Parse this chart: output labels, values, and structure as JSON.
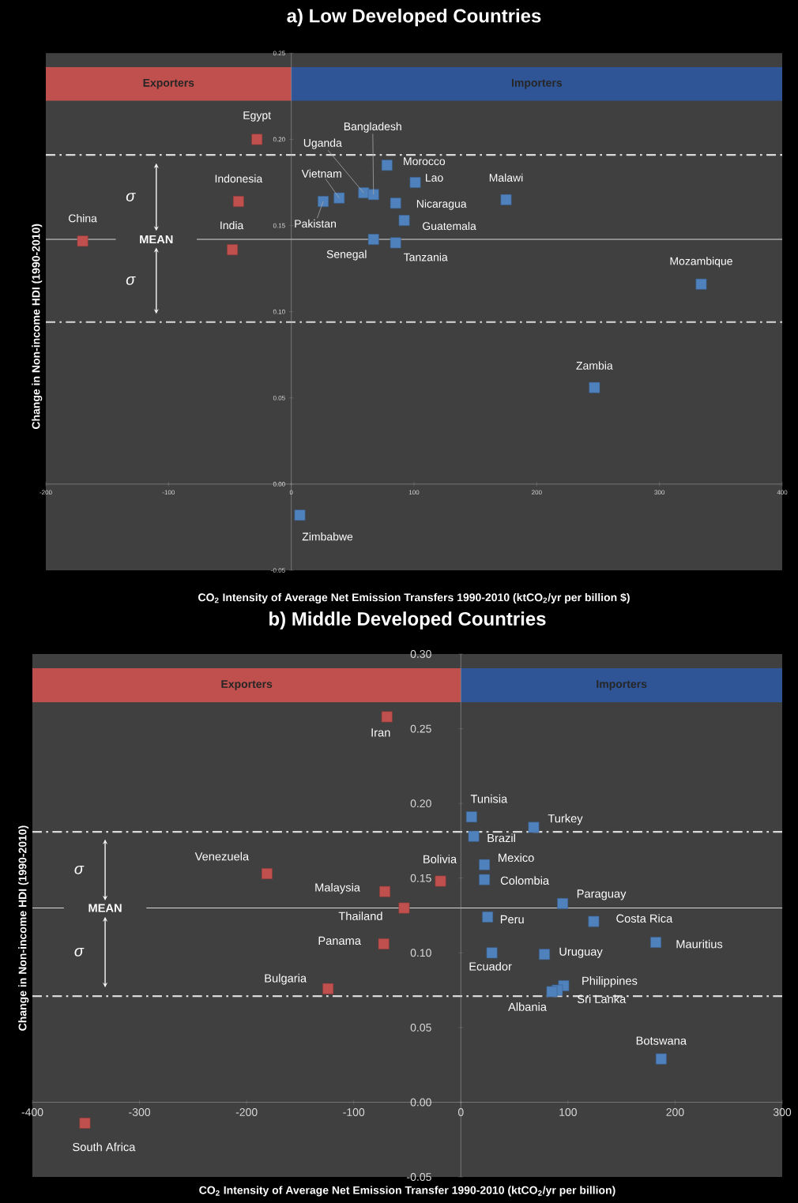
{
  "chart_data": [
    {
      "type": "scatter",
      "title": "a) Low Developed Countries",
      "xlabel": "CO$_{2}$ Intensity of Average Net Emission Transfers 1990-2010 (ktCO$_{2}$/yr per billion $)",
      "ylabel": "Change in Non-income HDI (1990-2010)",
      "xlim": [
        -200,
        400
      ],
      "ylim": [
        -0.05,
        0.25
      ],
      "xticks": [
        -200,
        -100,
        0,
        100,
        200,
        300,
        400
      ],
      "yticks": [
        {
          "value": -0.05,
          "label": "-0.05"
        },
        {
          "value": 0,
          "label": "0.00"
        },
        {
          "value": 0.05,
          "label": "0.05"
        },
        {
          "value": 0.1,
          "label": "0.10"
        },
        {
          "value": 0.15,
          "label": "0.15"
        },
        {
          "value": 0.2,
          "label": "0.20"
        },
        {
          "value": 0.25,
          "label": "0.25"
        }
      ],
      "marker": "square",
      "series": [
        {
          "color": "#c0504d",
          "x": [
            -170,
            -48,
            -43,
            -28
          ],
          "values": [
            0.141,
            0.136,
            0.164,
            0.2
          ]
        },
        {
          "color": "#4f81bd",
          "x": [
            7,
            26,
            39,
            59,
            67,
            78,
            101,
            85,
            92,
            67,
            85,
            175,
            334,
            247
          ],
          "values": [
            -0.018,
            0.164,
            0.166,
            0.169,
            0.168,
            0.185,
            0.175,
            0.163,
            0.153,
            0.142,
            0.14,
            0.165,
            0.116,
            0.056
          ]
        }
      ],
      "bands": [
        {
          "axis": "x",
          "from": -200,
          "to": 0,
          "label": "Exporters",
          "color": "#c0504d"
        },
        {
          "axis": "x",
          "from": 0,
          "to": 400,
          "label": "Importers",
          "color": "#2f5597"
        }
      ],
      "ref_lines": [
        {
          "axis": "y",
          "value": 0.142,
          "label": "MEAN",
          "color": "#d9d9d9",
          "line_style": "solid"
        },
        {
          "axis": "y",
          "value": 0.191,
          "color": "#d9d9d9",
          "line_style": "dashed"
        },
        {
          "axis": "y",
          "value": 0.094,
          "color": "#d9d9d9",
          "line_style": "dashed"
        }
      ],
      "annotations": [
        "σ",
        "σ",
        {
          "text": "China",
          "x": -170,
          "y": 0.141
        },
        {
          "text": "India",
          "x": -48,
          "y": 0.136
        },
        {
          "text": "Indonesia",
          "x": -43,
          "y": 0.164
        },
        {
          "text": "Egypt",
          "x": -28,
          "y": 0.2
        },
        {
          "text": "Zimbabwe",
          "x": 7,
          "y": -0.018
        },
        {
          "text": "Pakistan",
          "x": 26,
          "y": 0.164
        },
        {
          "text": "Vietnam",
          "x": 39,
          "y": 0.166
        },
        {
          "text": "Uganda",
          "x": 59,
          "y": 0.169
        },
        {
          "text": "Bangladesh",
          "x": 67,
          "y": 0.168
        },
        {
          "text": "Morocco",
          "x": 78,
          "y": 0.185
        },
        {
          "text": "Lao",
          "x": 101,
          "y": 0.175
        },
        {
          "text": "Nicaragua",
          "x": 85,
          "y": 0.163
        },
        {
          "text": "Guatemala",
          "x": 92,
          "y": 0.153
        },
        {
          "text": "Senegal",
          "x": 67,
          "y": 0.142
        },
        {
          "text": "Tanzania",
          "x": 85,
          "y": 0.14
        },
        {
          "text": "Malawi",
          "x": 175,
          "y": 0.165
        },
        {
          "text": "Mozambique",
          "x": 334,
          "y": 0.116
        },
        {
          "text": "Zambia",
          "x": 247,
          "y": 0.056
        }
      ]
    },
    {
      "type": "scatter",
      "title": "b) Middle Developed Countries",
      "xlabel": "CO$_{2}$ Intensity of Average Net Emission Transfer 1990-2010 (ktCO$_{2}$/yr per billion)",
      "ylabel": "Change in Non-income HDI (1990-2010)",
      "xlim": [
        -400,
        300
      ],
      "ylim": [
        -0.05,
        0.3
      ],
      "xticks": [
        -400,
        -300,
        -200,
        -100,
        0,
        100,
        200,
        300
      ],
      "yticks": [
        {
          "value": -0.05,
          "label": "-0.05"
        },
        {
          "value": 0,
          "label": "0.00"
        },
        {
          "value": 0.05,
          "label": "0.05"
        },
        {
          "value": 0.1,
          "label": "0.10"
        },
        {
          "value": 0.15,
          "label": "0.15"
        },
        {
          "value": 0.2,
          "label": "0.20"
        },
        {
          "value": 0.25,
          "label": "0.25"
        },
        {
          "value": 0.3,
          "label": "0.30"
        }
      ],
      "marker": "square",
      "series": [
        {
          "color": "#c0504d",
          "x": [
            -69,
            -351,
            -181,
            -71,
            -53,
            -19,
            -72,
            -124
          ],
          "values": [
            0.258,
            -0.014,
            0.153,
            0.141,
            0.13,
            0.148,
            0.106,
            0.076
          ]
        },
        {
          "color": "#4f81bd",
          "x": [
            10,
            12,
            68,
            22,
            22,
            95,
            25,
            124,
            182,
            29,
            78,
            96,
            90,
            85,
            187
          ],
          "values": [
            0.191,
            0.178,
            0.184,
            0.159,
            0.149,
            0.133,
            0.124,
            0.121,
            0.107,
            0.1,
            0.099,
            0.078,
            0.075,
            0.074,
            0.029
          ]
        }
      ],
      "bands": [
        {
          "axis": "x",
          "from": -400,
          "to": 0,
          "label": "Exporters",
          "color": "#c0504d"
        },
        {
          "axis": "x",
          "from": 0,
          "to": 300,
          "label": "Importers",
          "color": "#2f5597"
        }
      ],
      "ref_lines": [
        {
          "axis": "y",
          "value": 0.13,
          "label": "MEAN",
          "color": "#d9d9d9",
          "line_style": "solid"
        },
        {
          "axis": "y",
          "value": 0.181,
          "color": "#d9d9d9",
          "line_style": "dashed"
        },
        {
          "axis": "y",
          "value": 0.071,
          "color": "#d9d9d9",
          "line_style": "dashed"
        }
      ],
      "annotations": [
        "σ",
        "σ",
        {
          "text": "Iran",
          "x": -69,
          "y": 0.258
        },
        {
          "text": "South Africa",
          "x": -351,
          "y": -0.014
        },
        {
          "text": "Venezuela",
          "x": -181,
          "y": 0.153
        },
        {
          "text": "Malaysia",
          "x": -71,
          "y": 0.141
        },
        {
          "text": "Thailand",
          "x": -53,
          "y": 0.13
        },
        {
          "text": "Bolivia",
          "x": -19,
          "y": 0.148
        },
        {
          "text": "Panama",
          "x": -72,
          "y": 0.106
        },
        {
          "text": "Bulgaria",
          "x": -124,
          "y": 0.076
        },
        {
          "text": "Tunisia",
          "x": 10,
          "y": 0.191
        },
        {
          "text": "Brazil",
          "x": 12,
          "y": 0.178
        },
        {
          "text": "Turkey",
          "x": 68,
          "y": 0.184
        },
        {
          "text": "Mexico",
          "x": 22,
          "y": 0.159
        },
        {
          "text": "Colombia",
          "x": 22,
          "y": 0.149
        },
        {
          "text": "Paraguay",
          "x": 95,
          "y": 0.133
        },
        {
          "text": "Peru",
          "x": 25,
          "y": 0.124
        },
        {
          "text": "Costa Rica",
          "x": 124,
          "y": 0.121
        },
        {
          "text": "Mauritius",
          "x": 182,
          "y": 0.107
        },
        {
          "text": "Ecuador",
          "x": 29,
          "y": 0.1
        },
        {
          "text": "Uruguay",
          "x": 78,
          "y": 0.099
        },
        {
          "text": "Philippines",
          "x": 96,
          "y": 0.078
        },
        {
          "text": "Sri Lanka",
          "x": 90,
          "y": 0.075
        },
        {
          "text": "Albania",
          "x": 85,
          "y": 0.074
        },
        {
          "text": "Botswana",
          "x": 187,
          "y": 0.029
        }
      ]
    }
  ]
}
